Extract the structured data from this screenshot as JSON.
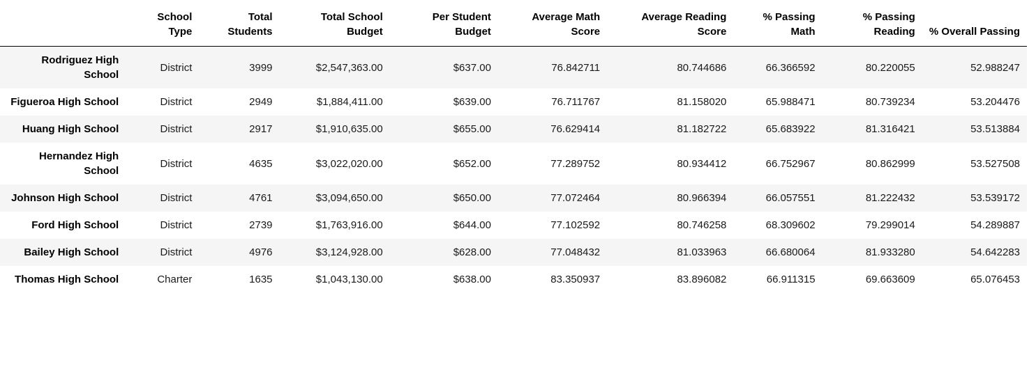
{
  "chart_data": {
    "type": "table",
    "title": "",
    "index_header": "",
    "columns": [
      "School Type",
      "Total Students",
      "Total School Budget",
      "Per Student Budget",
      "Average Math Score",
      "Average Reading Score",
      "% Passing Math",
      "% Passing Reading",
      "% Overall Passing"
    ],
    "rows": [
      {
        "index": "Rodriguez High School",
        "values": [
          "District",
          "3999",
          "$2,547,363.00",
          "$637.00",
          "76.842711",
          "80.744686",
          "66.366592",
          "80.220055",
          "52.988247"
        ]
      },
      {
        "index": "Figueroa High School",
        "values": [
          "District",
          "2949",
          "$1,884,411.00",
          "$639.00",
          "76.711767",
          "81.158020",
          "65.988471",
          "80.739234",
          "53.204476"
        ]
      },
      {
        "index": "Huang High School",
        "values": [
          "District",
          "2917",
          "$1,910,635.00",
          "$655.00",
          "76.629414",
          "81.182722",
          "65.683922",
          "81.316421",
          "53.513884"
        ]
      },
      {
        "index": "Hernandez High School",
        "values": [
          "District",
          "4635",
          "$3,022,020.00",
          "$652.00",
          "77.289752",
          "80.934412",
          "66.752967",
          "80.862999",
          "53.527508"
        ]
      },
      {
        "index": "Johnson High School",
        "values": [
          "District",
          "4761",
          "$3,094,650.00",
          "$650.00",
          "77.072464",
          "80.966394",
          "66.057551",
          "81.222432",
          "53.539172"
        ]
      },
      {
        "index": "Ford High School",
        "values": [
          "District",
          "2739",
          "$1,763,916.00",
          "$644.00",
          "77.102592",
          "80.746258",
          "68.309602",
          "79.299014",
          "54.289887"
        ]
      },
      {
        "index": "Bailey High School",
        "values": [
          "District",
          "4976",
          "$3,124,928.00",
          "$628.00",
          "77.048432",
          "81.033963",
          "66.680064",
          "81.933280",
          "54.642283"
        ]
      },
      {
        "index": "Thomas High School",
        "values": [
          "Charter",
          "1635",
          "$1,043,130.00",
          "$638.00",
          "83.350937",
          "83.896082",
          "66.911315",
          "69.663609",
          "65.076453"
        ]
      }
    ],
    "layout_hints": {
      "stripe_color": "#f5f5f5",
      "header_border_color": "#000000",
      "text_color": "#1a1a1a",
      "alignment": "right",
      "striped_rows": "odd"
    }
  }
}
